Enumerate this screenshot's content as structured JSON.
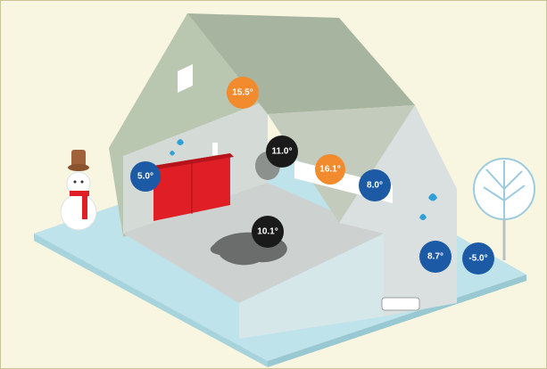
{
  "colors": {
    "background": "#f8f6e0",
    "ground": "#bfe3ea",
    "wall_outer": "#b7c4ad",
    "wall_inner": "#d7dcdc",
    "floor": "#c9cccb",
    "roof": "#a9b5a0",
    "cabinet": "#e01e26",
    "badge_warm": "#f28a2e",
    "badge_cold": "#1c5aa6",
    "badge_neutral": "#1a1a1a",
    "water": "#2f9fd8"
  },
  "labels": {
    "attic_window": "15.5°",
    "kitchen_wall": "5.0°",
    "ceiling": "11.0°",
    "roof_insulation": "16.1°",
    "roof_outer": "8.0°",
    "floor_leak": "10.1°",
    "outer_wall": "8.7°",
    "outside": "-5.0°"
  },
  "icons": {
    "snowman": "snowman-icon",
    "tree": "frosty-tree-icon",
    "droplets": "water-droplet-icon",
    "radiator": "radiator-icon",
    "puddle": "damp-puddle-icon"
  }
}
